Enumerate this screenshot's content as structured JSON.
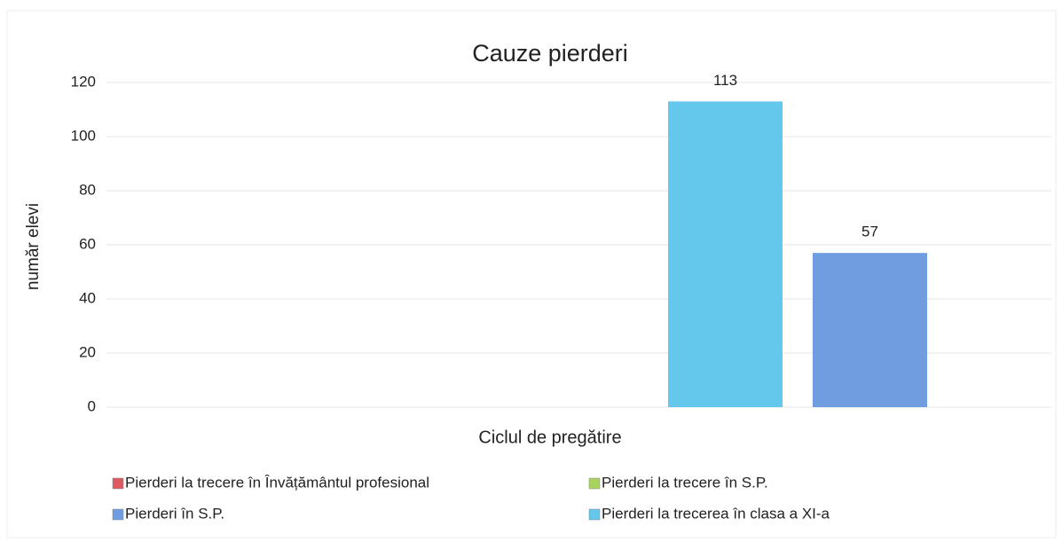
{
  "chart_data": {
    "type": "bar",
    "title": "Cauze pierderi",
    "y_label": "număr elevi",
    "x_label": "Ciclul de pregătire",
    "categories": [
      null
    ],
    "series": [
      {
        "name": "Pierderi la trecere în Învățământul profesional",
        "color": "#dc5a62",
        "values": [
          null
        ]
      },
      {
        "name": "Pierderi la trecere în S.P.",
        "color": "#a8d35c",
        "values": [
          null
        ]
      },
      {
        "name": "Pierderi la trecerea în clasa a XI-a",
        "color": "#63c8ec",
        "values": [
          113
        ]
      },
      {
        "name": "Pierderi în S.P.",
        "color": "#6f9de0",
        "values": [
          57
        ]
      }
    ],
    "ylim": [
      0,
      120
    ],
    "yticks": [
      0,
      20,
      40,
      60,
      80,
      100,
      120
    ],
    "grid": true
  }
}
